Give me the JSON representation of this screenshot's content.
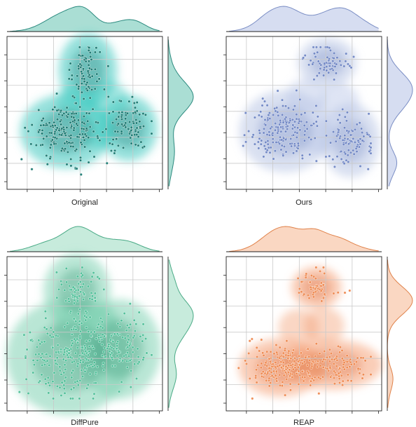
{
  "chart_data": [
    {
      "type": "scatter",
      "title": "Original",
      "colors": {
        "main": "#3fc9c0",
        "dark": "#1f7f78",
        "point": "#1a7a72",
        "margin": "#8ed3c6",
        "margin_line": "#2c8a7f"
      },
      "clusters": [
        {
          "cx": 0.38,
          "cy": 0.38,
          "sx": 0.11,
          "sy": 0.09,
          "n": 190
        },
        {
          "cx": 0.78,
          "cy": 0.4,
          "sx": 0.07,
          "sy": 0.08,
          "n": 90
        },
        {
          "cx": 0.52,
          "cy": 0.78,
          "sx": 0.07,
          "sy": 0.09,
          "n": 70
        }
      ],
      "blobs": [
        [
          0.18,
          0.25,
          0.3,
          0.68,
          0.42,
          0.92,
          0.62,
          0.95,
          0.62,
          0.66,
          0.72,
          0.6,
          0.92,
          0.62,
          0.92,
          0.22,
          0.62,
          0.22
        ]
      ]
    },
    {
      "type": "scatter",
      "title": "Ours",
      "colors": {
        "main": "#b9c6e6",
        "dark": "#7b8fc6",
        "point": "#6f86c4",
        "margin": "#c8d1ec",
        "margin_line": "#7a8dc4"
      },
      "clusters": [
        {
          "cx": 0.38,
          "cy": 0.38,
          "sx": 0.11,
          "sy": 0.1,
          "n": 180
        },
        {
          "cx": 0.8,
          "cy": 0.32,
          "sx": 0.07,
          "sy": 0.09,
          "n": 95
        },
        {
          "cx": 0.65,
          "cy": 0.83,
          "sx": 0.07,
          "sy": 0.06,
          "n": 70
        }
      ],
      "blobs": []
    },
    {
      "type": "scatter",
      "title": "DiffPure",
      "colors": {
        "main": "#7fd1b2",
        "dark": "#3d9c7c",
        "point": "#4fbf98",
        "margin": "#b4e4d0",
        "margin_line": "#4aaa86"
      },
      "clusters": [
        {
          "cx": 0.4,
          "cy": 0.35,
          "sx": 0.15,
          "sy": 0.14,
          "n": 230
        },
        {
          "cx": 0.72,
          "cy": 0.4,
          "sx": 0.1,
          "sy": 0.12,
          "n": 100
        },
        {
          "cx": 0.45,
          "cy": 0.78,
          "sx": 0.08,
          "sy": 0.09,
          "n": 70
        }
      ],
      "blobs": []
    },
    {
      "type": "scatter",
      "title": "REAP",
      "colors": {
        "main": "#f5a47c",
        "dark": "#d9703f",
        "point": "#ee8a52",
        "margin": "#f8c9ae",
        "margin_line": "#e0824a"
      },
      "clusters": [
        {
          "cx": 0.35,
          "cy": 0.28,
          "sx": 0.1,
          "sy": 0.07,
          "n": 190
        },
        {
          "cx": 0.68,
          "cy": 0.3,
          "sx": 0.12,
          "sy": 0.06,
          "n": 120
        },
        {
          "cx": 0.58,
          "cy": 0.8,
          "sx": 0.06,
          "sy": 0.05,
          "n": 60
        }
      ],
      "blobs": []
    }
  ]
}
